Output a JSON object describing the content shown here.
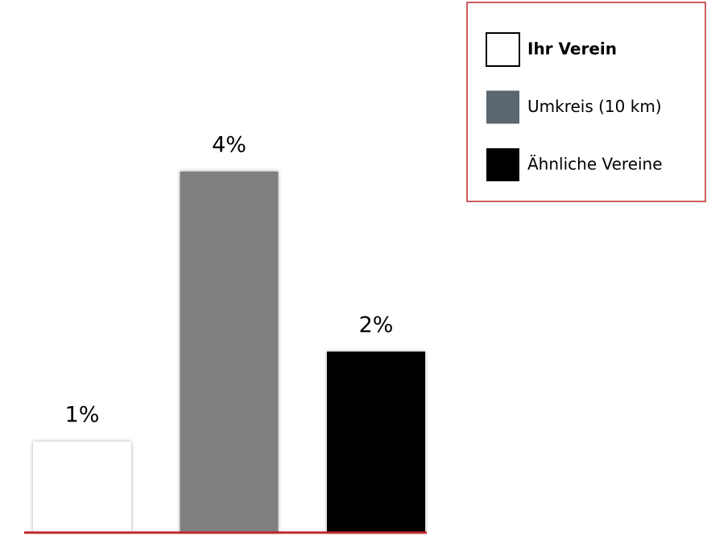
{
  "chart_data": {
    "type": "bar",
    "series": [
      {
        "name": "Ihr Verein",
        "color": "#ffffff",
        "legend_color": "#ffffff",
        "values": [
          1
        ],
        "value_labels": [
          "1%"
        ]
      },
      {
        "name": "Umkreis (10 km)",
        "color": "#808080",
        "legend_color": "#5b6670",
        "values": [
          4
        ],
        "value_labels": [
          "4%"
        ]
      },
      {
        "name": "Ähnliche Vereine",
        "color": "#000000",
        "legend_color": "#000000",
        "values": [
          2
        ],
        "value_labels": [
          "2%"
        ]
      }
    ],
    "ylim": [
      0,
      5
    ],
    "legend": "upper right"
  }
}
